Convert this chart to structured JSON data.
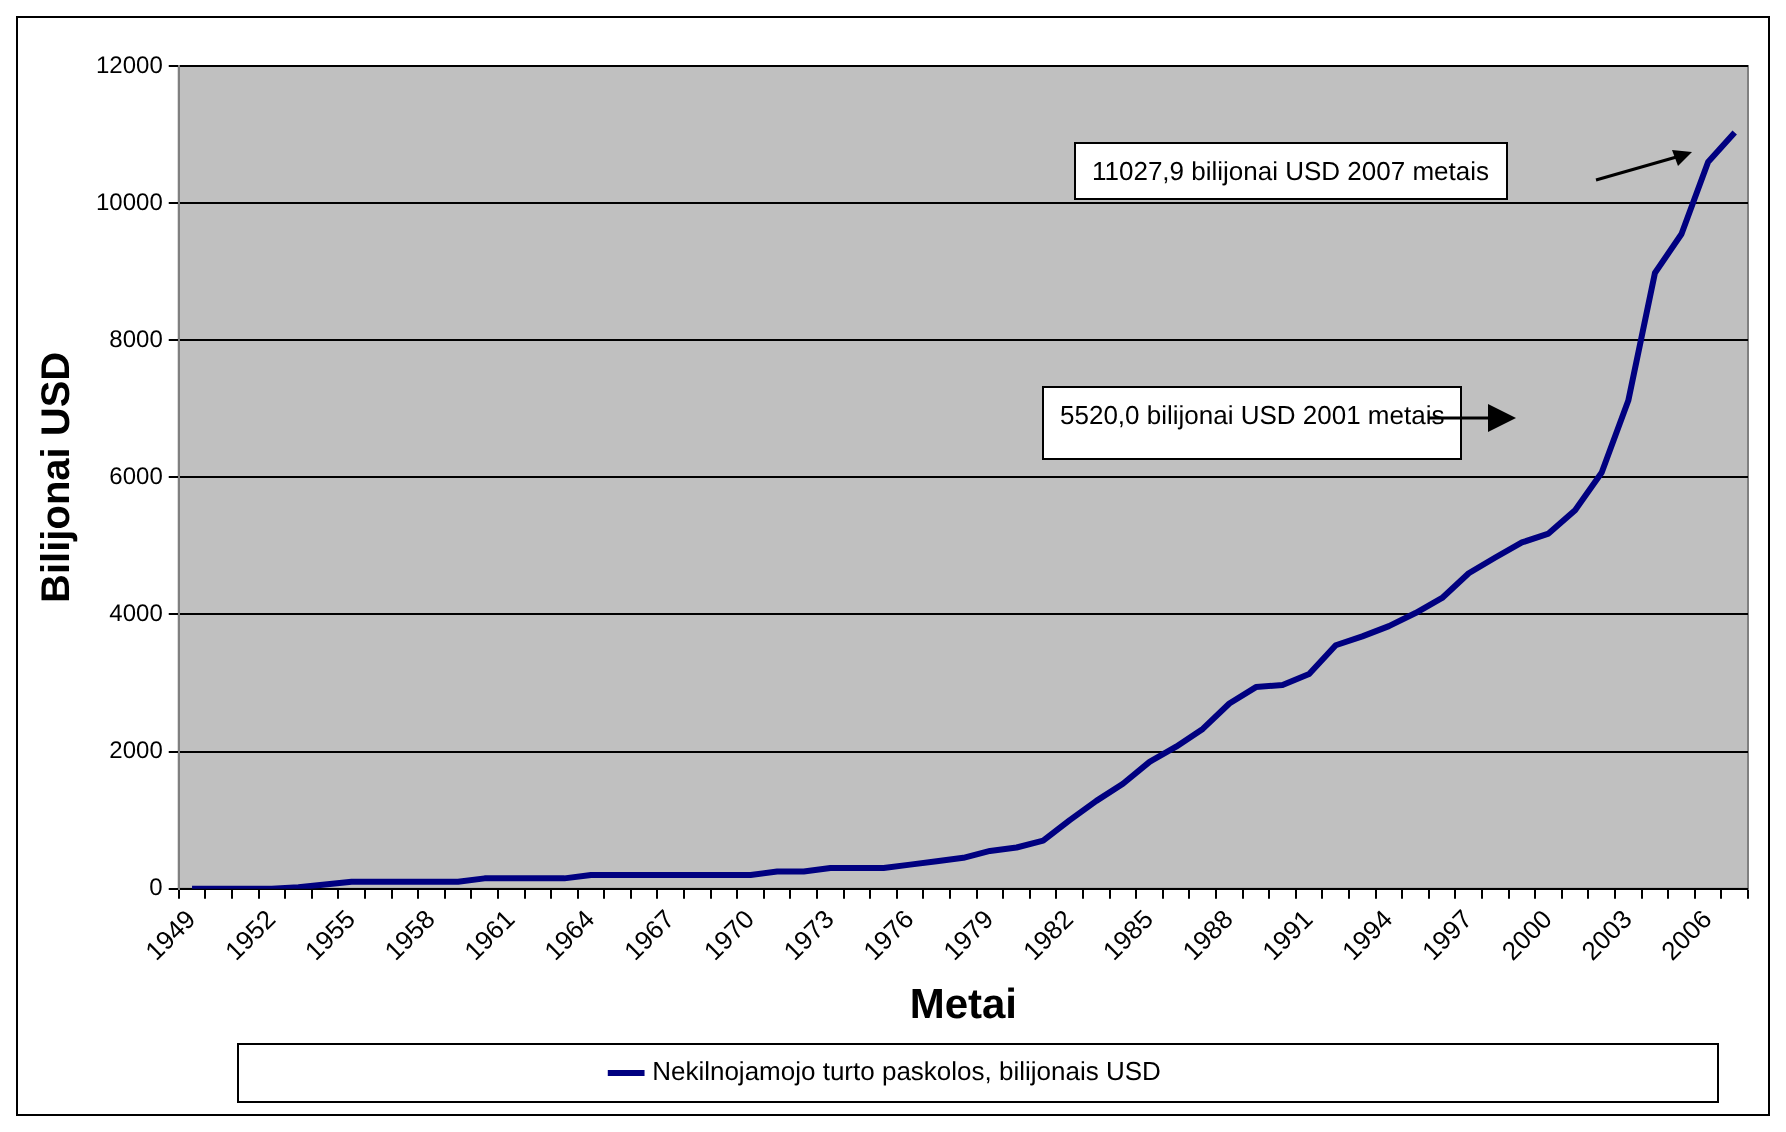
{
  "chart_data": {
    "type": "line",
    "xlabel": "Metai",
    "ylabel": "Bilijonai USD",
    "categories": [
      "1949",
      null,
      null,
      "1952",
      null,
      null,
      "1955",
      null,
      null,
      "1958",
      null,
      null,
      "1961",
      null,
      null,
      "1964",
      null,
      null,
      "1967",
      null,
      null,
      "1970",
      null,
      null,
      "1973",
      null,
      null,
      "1976",
      null,
      null,
      "1979",
      null,
      null,
      "1982",
      null,
      null,
      "1985",
      null,
      null,
      "1988",
      null,
      null,
      "1991",
      null,
      null,
      "1994",
      null,
      null,
      "1997",
      null,
      null,
      "2000",
      null,
      null,
      "2003",
      null,
      null,
      "2006",
      null
    ],
    "series": [
      {
        "name": "Nekilnojamojo turto paskolos, bilijonais USD",
        "color": "#000080",
        "values": [
          0,
          0,
          0,
          0,
          20,
          60,
          100,
          100,
          100,
          100,
          100,
          150,
          150,
          150,
          150,
          200,
          200,
          200,
          200,
          200,
          200,
          200,
          250,
          250,
          300,
          300,
          300,
          350,
          400,
          450,
          550,
          600,
          700,
          1000,
          1280,
          1530,
          1850,
          2070,
          2330,
          2700,
          2940,
          2970,
          3130,
          3550,
          3680,
          3830,
          4020,
          4240,
          4600,
          4830,
          5050,
          5180,
          5520,
          6070,
          7120,
          8980,
          9550,
          10600,
          11030
        ]
      }
    ],
    "ylim": [
      0,
      12000
    ],
    "yticks": [
      0,
      2000,
      4000,
      6000,
      8000,
      10000,
      12000
    ],
    "grid": "y",
    "legend": "bottom",
    "marker": "none",
    "line_style": "solid",
    "annotations": [
      "11027,9 bilijonai USD 2007 metais",
      "5520,0 bilijonai USD 2001 metais"
    ]
  }
}
